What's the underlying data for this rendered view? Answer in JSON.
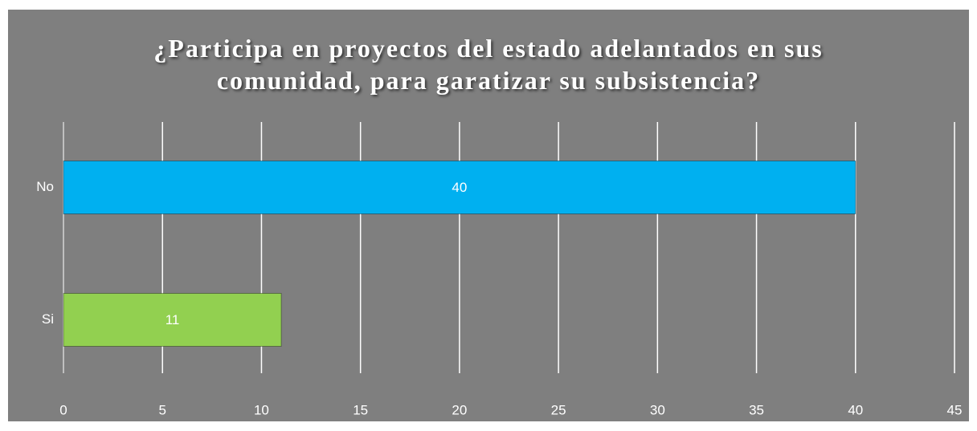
{
  "chart_data": {
    "type": "hbar",
    "title": "¿Participa en proyectos del estado adelantados en sus comunidad, para garatizar su subsistencia?",
    "categories": [
      "No",
      "Si"
    ],
    "values": [
      40,
      11
    ],
    "colors": [
      "#00b0f0",
      "#92d050"
    ],
    "xlim": [
      0,
      45
    ],
    "xticks": [
      0,
      5,
      10,
      15,
      20,
      25,
      30,
      35,
      40,
      45
    ],
    "grid": true
  }
}
